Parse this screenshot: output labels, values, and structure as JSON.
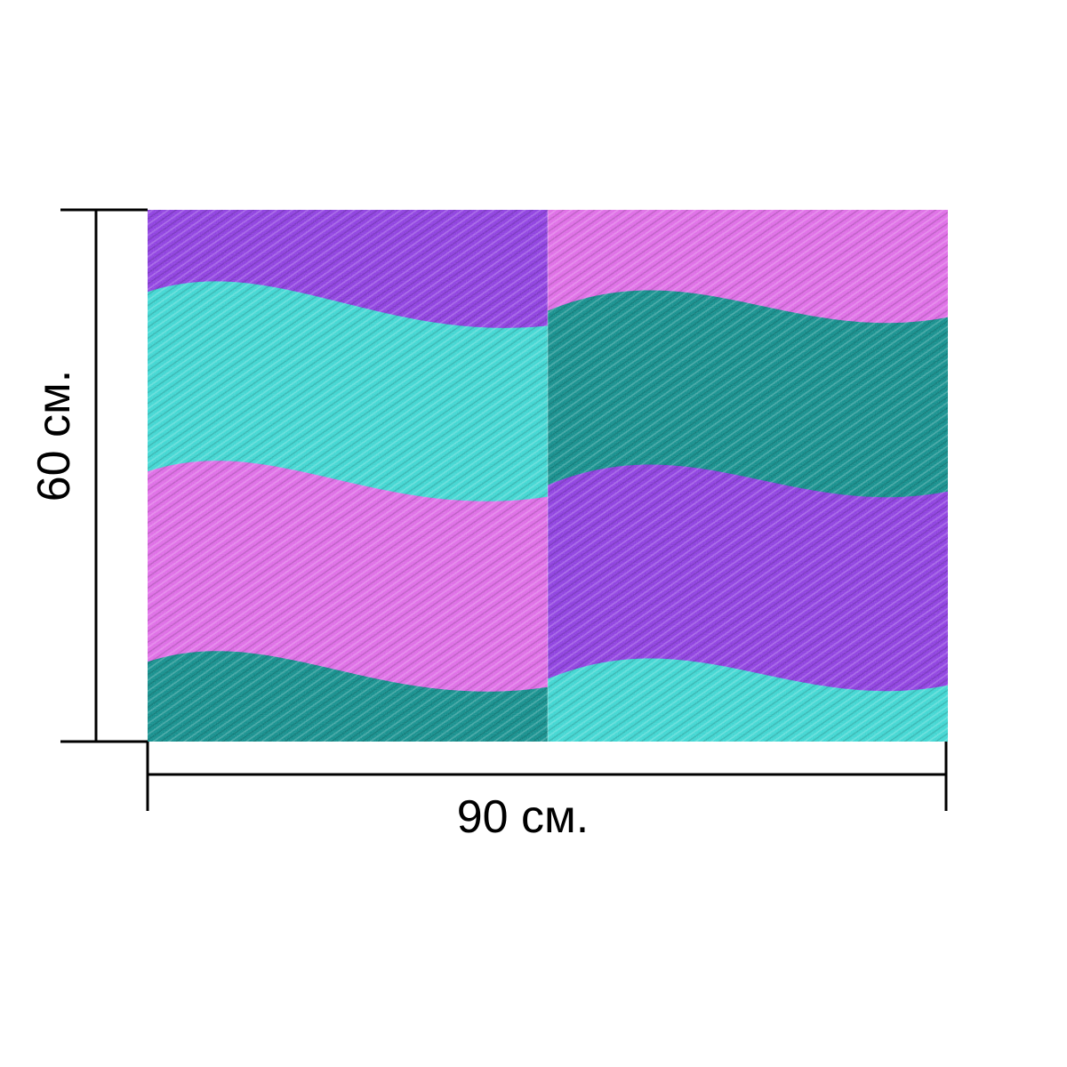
{
  "product": {
    "width_label": "90 см.",
    "height_label": "60 см."
  },
  "palette": {
    "purple": "#8e3fe0",
    "pink": "#de6ce6",
    "cyan": "#3fd6d2",
    "teal": "#138f8d",
    "line": "#000000"
  },
  "pattern": {
    "name": "denim-texture-wave-stripes",
    "left_half_bands": [
      "purple",
      "cyan",
      "pink",
      "teal"
    ],
    "right_half_bands": [
      "pink",
      "teal",
      "purple",
      "cyan"
    ]
  }
}
